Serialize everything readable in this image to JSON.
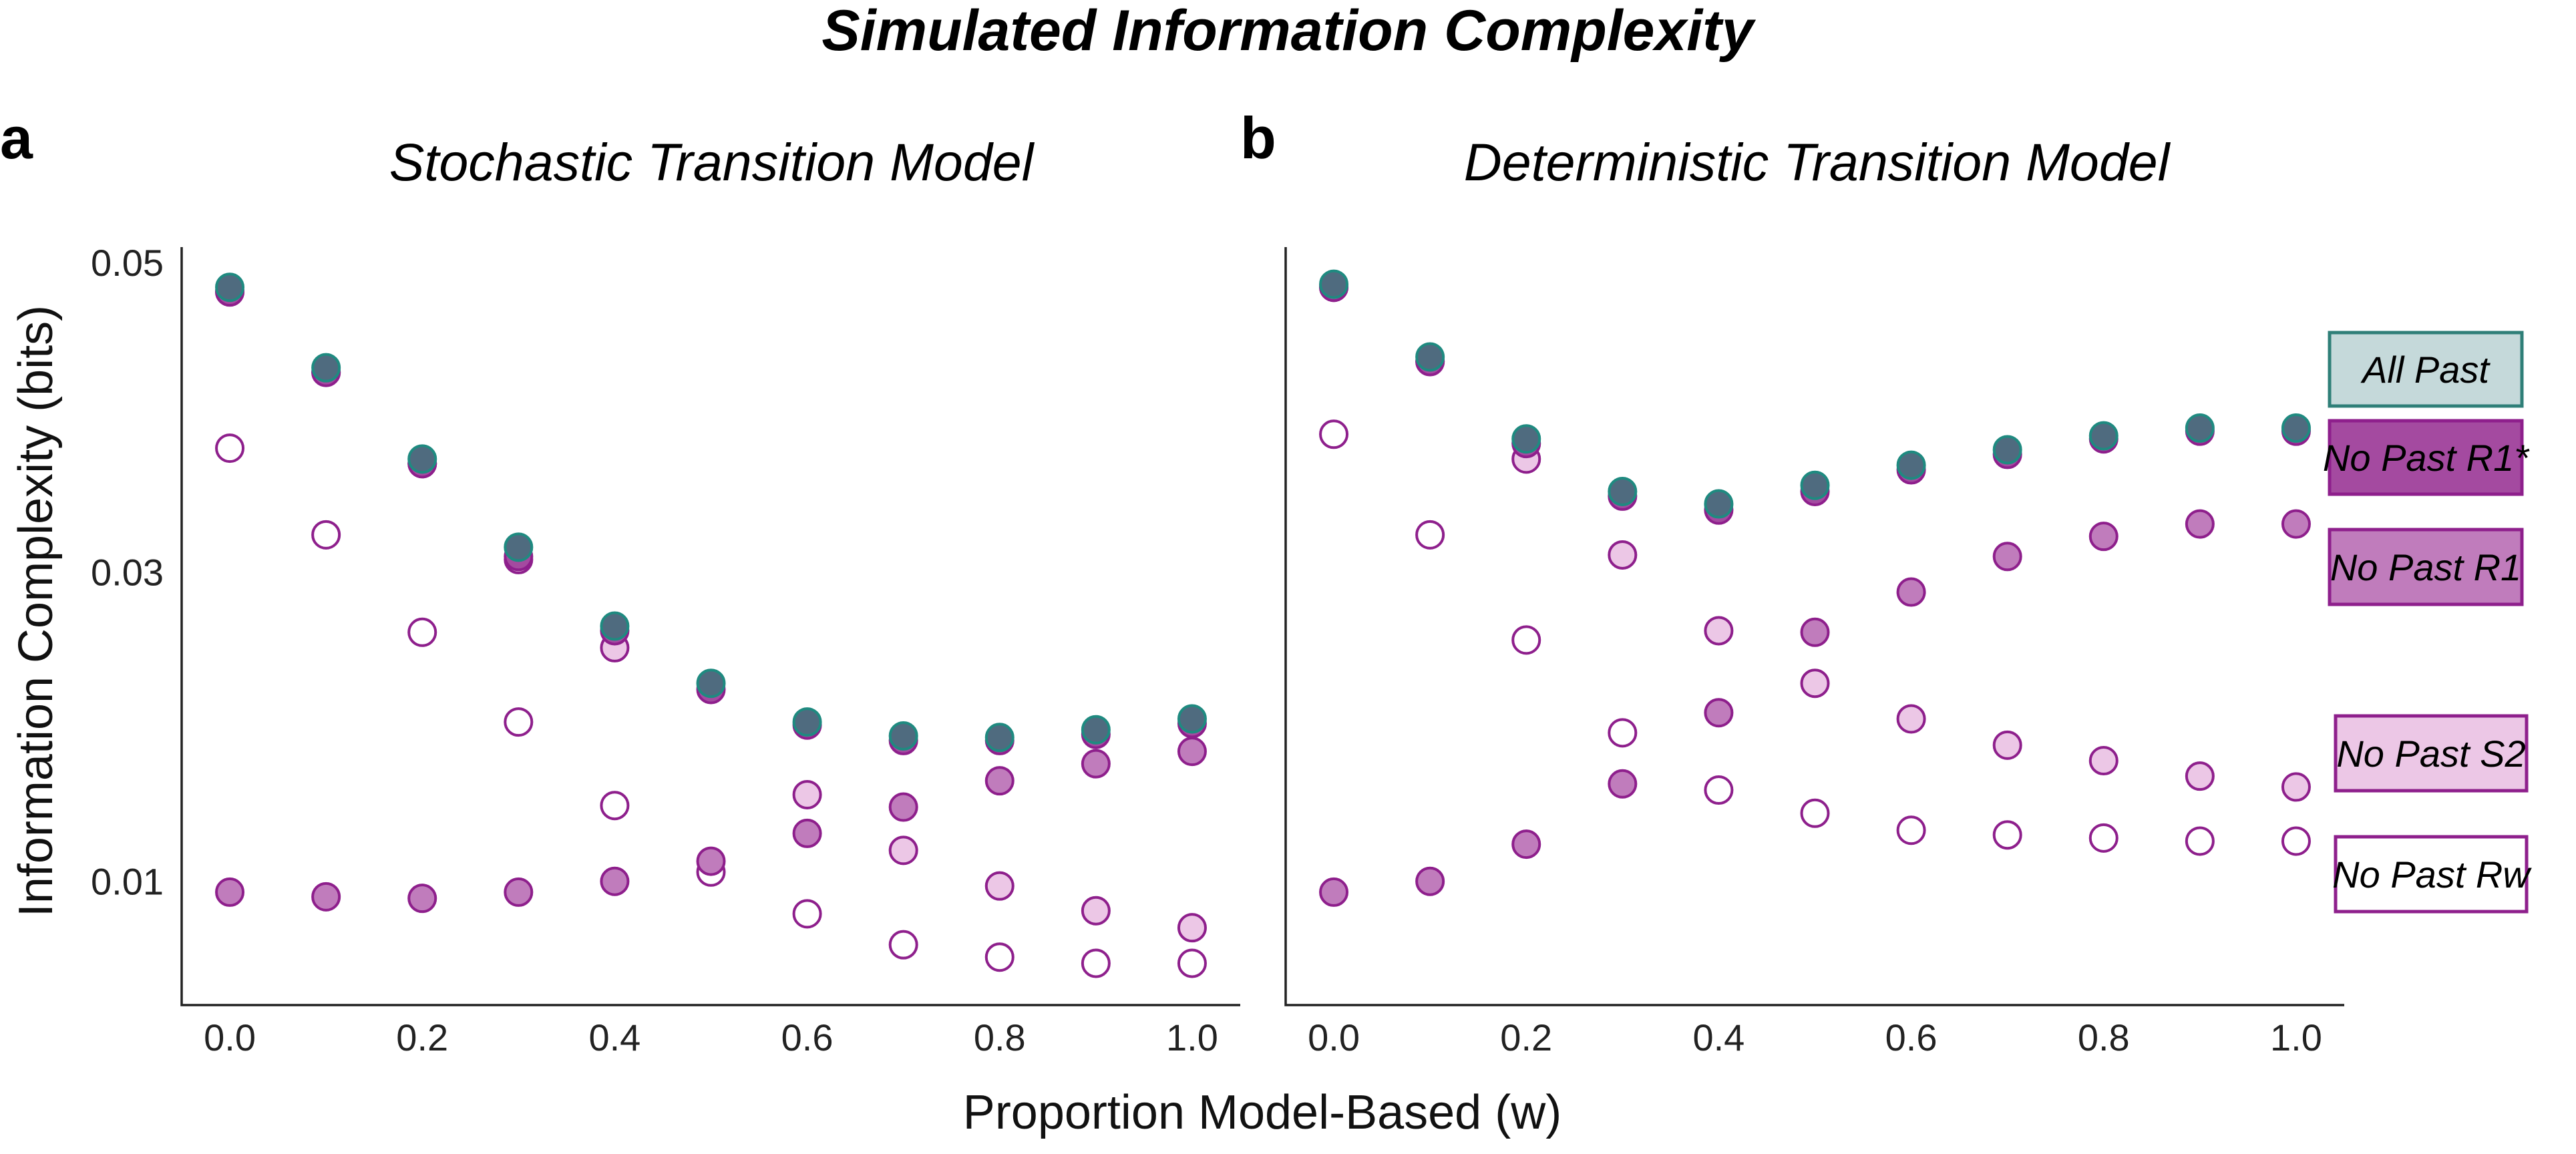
{
  "figure": {
    "title": "Simulated Information Complexity",
    "xlabel": "Proportion Model-Based (w)",
    "ylabel": "Information Complexity (bits)"
  },
  "colors": {
    "all_past": "#4f6b7f",
    "all_past_edge": "#1f8a80",
    "r1star": "#a44aa0",
    "r1": "#c07cbc",
    "s2": "#ecc7e6",
    "edge": "#8e1f8c",
    "rw": "#ffffff"
  },
  "legend": [
    {
      "key": "all_past",
      "label": "All Past",
      "fill": "#c5d9da",
      "edge": "#2f7f78"
    },
    {
      "key": "r1star",
      "label": "No Past R1*",
      "fill": "#a44aa0",
      "edge": "#8e1f8c"
    },
    {
      "key": "r1",
      "label": "No Past R1",
      "fill": "#c07cbc",
      "edge": "#8e1f8c"
    },
    {
      "key": "s2",
      "label": "No Past S2",
      "fill": "#ecc7e6",
      "edge": "#8e1f8c"
    },
    {
      "key": "rw",
      "label": "No Past Rw",
      "fill": "#ffffff",
      "edge": "#8e1f8c"
    }
  ],
  "chart_data": [
    {
      "type": "scatter",
      "panel": "a",
      "title": "Stochastic Transition Model",
      "xlim": [
        -0.05,
        1.05
      ],
      "ylim": [
        0.002,
        0.051
      ],
      "xticks": [
        0.0,
        0.2,
        0.4,
        0.6,
        0.8,
        1.0
      ],
      "xtick_labels": [
        "0.0",
        "0.2",
        "0.4",
        "0.6",
        "0.8",
        "1.0"
      ],
      "yticks": [
        0.01,
        0.03,
        0.05
      ],
      "ytick_labels": [
        "0.01",
        "0.03",
        "0.05"
      ],
      "x": [
        0.0,
        0.1,
        0.2,
        0.3,
        0.4,
        0.5,
        0.6,
        0.7,
        0.8,
        0.9,
        1.0
      ],
      "series": [
        {
          "name": "All Past",
          "key": "all_past",
          "values": [
            0.0484,
            0.0432,
            0.0373,
            0.0316,
            0.0265,
            0.0228,
            0.0203,
            0.0194,
            0.0193,
            0.0198,
            0.0205
          ]
        },
        {
          "name": "No Past R1*",
          "key": "r1star",
          "values": [
            0.0481,
            0.0429,
            0.037,
            0.031,
            0.0262,
            0.0224,
            0.0201,
            0.0191,
            0.0191,
            0.0195,
            0.0202
          ]
        },
        {
          "name": "No Past R1",
          "key": "r1",
          "values": [
            0.0093,
            0.009,
            0.0089,
            0.0093,
            0.01,
            0.0113,
            0.0131,
            0.0148,
            0.0165,
            0.0176,
            0.0184
          ]
        },
        {
          "name": "No Past S2",
          "key": "s2",
          "values": [
            0.0481,
            0.0429,
            0.037,
            0.0308,
            0.0251,
            null,
            0.0156,
            0.012,
            0.0097,
            0.0081,
            0.007
          ]
        },
        {
          "name": "No Past Rw",
          "key": "rw",
          "values": [
            0.038,
            0.0324,
            0.0261,
            0.0203,
            0.0149,
            0.0106,
            0.0079,
            0.0059,
            0.0051,
            0.0047,
            0.0047
          ]
        }
      ]
    },
    {
      "type": "scatter",
      "panel": "b",
      "title": "Deterministic Transition Model",
      "xlim": [
        -0.05,
        1.05
      ],
      "ylim": [
        0.002,
        0.051
      ],
      "xticks": [
        0.0,
        0.2,
        0.4,
        0.6,
        0.8,
        1.0
      ],
      "xtick_labels": [
        "0.0",
        "0.2",
        "0.4",
        "0.6",
        "0.8",
        "1.0"
      ],
      "x": [
        0.0,
        0.1,
        0.2,
        0.3,
        0.4,
        0.5,
        0.6,
        0.7,
        0.8,
        0.9,
        1.0
      ],
      "series": [
        {
          "name": "All Past",
          "key": "all_past",
          "values": [
            0.0486,
            0.0439,
            0.0386,
            0.0352,
            0.0344,
            0.0356,
            0.0369,
            0.0379,
            0.0388,
            0.0393,
            0.0393
          ]
        },
        {
          "name": "No Past R1*",
          "key": "r1star",
          "values": [
            0.0484,
            0.0436,
            0.0383,
            0.0349,
            0.034,
            0.0352,
            0.0366,
            0.0376,
            0.0386,
            0.0391,
            0.0391
          ]
        },
        {
          "name": "No Past R1",
          "key": "r1",
          "values": [
            0.0093,
            0.01,
            0.0124,
            0.0163,
            0.0209,
            0.0261,
            0.0287,
            0.031,
            0.0323,
            0.0331,
            0.0331
          ]
        },
        {
          "name": "No Past S2",
          "key": "s2",
          "values": [
            0.0484,
            0.0436,
            0.0373,
            0.0311,
            0.0262,
            0.0228,
            0.0205,
            0.0188,
            0.0178,
            0.0168,
            0.0161
          ]
        },
        {
          "name": "No Past Rw",
          "key": "rw",
          "values": [
            0.0389,
            0.0324,
            0.0256,
            0.0196,
            0.0159,
            0.0144,
            0.0133,
            0.013,
            0.0128,
            0.0126,
            0.0126
          ]
        }
      ]
    }
  ]
}
